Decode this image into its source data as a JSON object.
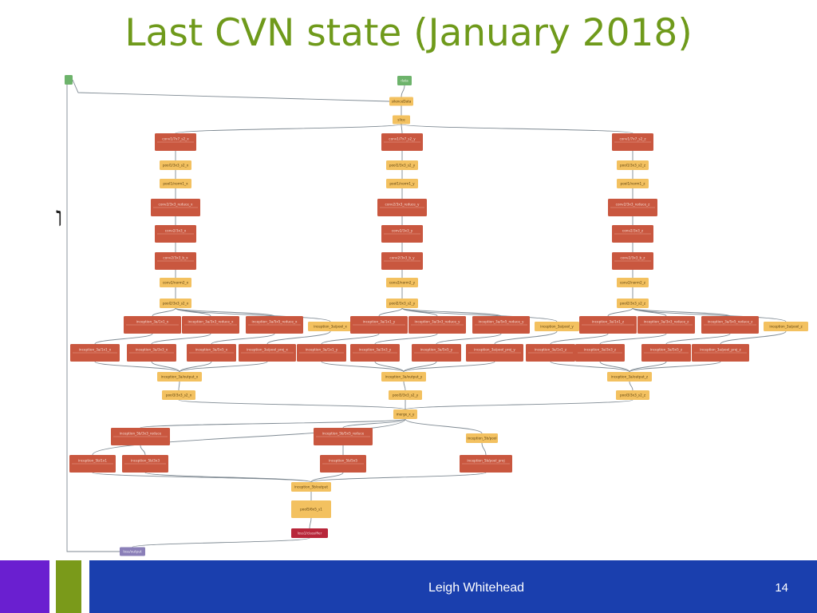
{
  "slide": {
    "title": "Last CVN state (January 2018)",
    "stray_glyph": "ו",
    "author": "Leigh Whitehead",
    "page_number": "14"
  },
  "colors": {
    "input": "#6db36b",
    "data": "#f3c160",
    "op": "#c9573f",
    "loss": "#b8263a",
    "label": "#8a7fb8",
    "edge": "#7f8a93",
    "title": "#6f9a1b",
    "footer_purple": "#6a1fd0",
    "footer_green": "#7a9a1a",
    "footer_blue": "#1a3fae"
  },
  "graph": {
    "nodes": [
      {
        "id": "label_in",
        "kind": "input",
        "text": ""
      },
      {
        "id": "data_in",
        "kind": "input",
        "text": "data"
      },
      {
        "id": "silence",
        "kind": "data",
        "text": "silenceData"
      },
      {
        "id": "slice",
        "kind": "data",
        "text": "slice"
      },
      {
        "id": "conv1x",
        "kind": "op",
        "text": "conv1/7x7_s2_x"
      },
      {
        "id": "pool1x",
        "kind": "data",
        "text": "pool1/3x3_s2_x"
      },
      {
        "id": "lrn1x",
        "kind": "data",
        "text": "pool1/norm1_x"
      },
      {
        "id": "c3rx",
        "kind": "op",
        "text": "conv2/3x3_reduce_x"
      },
      {
        "id": "c3x",
        "kind": "op",
        "text": "conv2/3x3_x"
      },
      {
        "id": "c3bx",
        "kind": "op",
        "text": "conv2/3x3_b_x"
      },
      {
        "id": "lrn2x",
        "kind": "data",
        "text": "conv2/norm2_x"
      },
      {
        "id": "pool2x",
        "kind": "data",
        "text": "pool2/3x3_s2_x"
      },
      {
        "id": "i1x",
        "kind": "op",
        "text": "inception_3a/1x1_x"
      },
      {
        "id": "i2x",
        "kind": "op",
        "text": "inception_3a/3x3_reduce_x"
      },
      {
        "id": "i3x",
        "kind": "op",
        "text": "inception_3a/5x5_reduce_x"
      },
      {
        "id": "i4x",
        "kind": "data",
        "text": "inception_3a/pool_x"
      },
      {
        "id": "j1x",
        "kind": "op",
        "text": "inception_3a/1x1_x"
      },
      {
        "id": "j2x",
        "kind": "op",
        "text": "inception_3a/3x3_x"
      },
      {
        "id": "j3x",
        "kind": "op",
        "text": "inception_3a/5x5_x"
      },
      {
        "id": "j4x",
        "kind": "op",
        "text": "inception_3a/pool_proj_x"
      },
      {
        "id": "catx",
        "kind": "data",
        "text": "inception_3a/output_x"
      },
      {
        "id": "pool3x",
        "kind": "data",
        "text": "pool3/3x3_s2_x"
      },
      {
        "id": "conv1y",
        "kind": "op",
        "text": "conv1/7x7_s2_y"
      },
      {
        "id": "pool1y",
        "kind": "data",
        "text": "pool1/3x3_s2_y"
      },
      {
        "id": "lrn1y",
        "kind": "data",
        "text": "pool1/norm1_y"
      },
      {
        "id": "c3ry",
        "kind": "op",
        "text": "conv2/3x3_reduce_y"
      },
      {
        "id": "c3y",
        "kind": "op",
        "text": "conv2/3x3_y"
      },
      {
        "id": "c3by",
        "kind": "op",
        "text": "conv2/3x3_b_y"
      },
      {
        "id": "lrn2y",
        "kind": "data",
        "text": "conv2/norm2_y"
      },
      {
        "id": "pool2y",
        "kind": "data",
        "text": "pool2/3x3_s2_y"
      },
      {
        "id": "i1y",
        "kind": "op",
        "text": "inception_3a/1x1_y"
      },
      {
        "id": "i2y",
        "kind": "op",
        "text": "inception_3a/3x3_reduce_y"
      },
      {
        "id": "i3y",
        "kind": "op",
        "text": "inception_3a/5x5_reduce_y"
      },
      {
        "id": "i4y",
        "kind": "data",
        "text": "inception_3a/pool_y"
      },
      {
        "id": "j1y",
        "kind": "op",
        "text": "inception_3a/1x1_y"
      },
      {
        "id": "j2y",
        "kind": "op",
        "text": "inception_3a/3x3_y"
      },
      {
        "id": "j3y",
        "kind": "op",
        "text": "inception_3a/5x5_y"
      },
      {
        "id": "j4y",
        "kind": "op",
        "text": "inception_3a/pool_proj_y"
      },
      {
        "id": "caty",
        "kind": "data",
        "text": "inception_3a/output_y"
      },
      {
        "id": "pool3y",
        "kind": "data",
        "text": "pool3/3x3_s2_y"
      },
      {
        "id": "conv1z",
        "kind": "op",
        "text": "conv1/7x7_s2_z"
      },
      {
        "id": "pool1z",
        "kind": "data",
        "text": "pool1/3x3_s2_z"
      },
      {
        "id": "lrn1z",
        "kind": "data",
        "text": "pool1/norm1_z"
      },
      {
        "id": "c3rz",
        "kind": "op",
        "text": "conv2/3x3_reduce_z"
      },
      {
        "id": "c3z",
        "kind": "op",
        "text": "conv2/3x3_z"
      },
      {
        "id": "c3bz",
        "kind": "op",
        "text": "conv2/3x3_b_z"
      },
      {
        "id": "lrn2z",
        "kind": "data",
        "text": "conv2/norm2_z"
      },
      {
        "id": "pool2z",
        "kind": "data",
        "text": "pool2/3x3_s2_z"
      },
      {
        "id": "i1z",
        "kind": "op",
        "text": "inception_3a/1x1_z"
      },
      {
        "id": "i2z",
        "kind": "op",
        "text": "inception_3a/3x3_reduce_z"
      },
      {
        "id": "i3z",
        "kind": "op",
        "text": "inception_3a/5x5_reduce_z"
      },
      {
        "id": "i4z",
        "kind": "data",
        "text": "inception_3a/pool_z"
      },
      {
        "id": "j1z",
        "kind": "op",
        "text": "inception_3a/1x1_z"
      },
      {
        "id": "j2z",
        "kind": "op",
        "text": "inception_3a/3x3_z"
      },
      {
        "id": "j3z",
        "kind": "op",
        "text": "inception_3a/5x5_z"
      },
      {
        "id": "j4z",
        "kind": "op",
        "text": "inception_3a/pool_proj_z"
      },
      {
        "id": "catz",
        "kind": "data",
        "text": "inception_3a/output_z"
      },
      {
        "id": "pool3z",
        "kind": "data",
        "text": "pool3/3x3_s2_z"
      },
      {
        "id": "merge",
        "kind": "data",
        "text": "merge_x_y"
      },
      {
        "id": "m1",
        "kind": "op",
        "text": "inception_5b/3x3_reduce"
      },
      {
        "id": "m2",
        "kind": "op",
        "text": "inception_5b/5x5_reduce"
      },
      {
        "id": "m3",
        "kind": "data",
        "text": "inception_5b/pool"
      },
      {
        "id": "n1",
        "kind": "op",
        "text": "inception_5b/1x1"
      },
      {
        "id": "n2",
        "kind": "op",
        "text": "inception_5b/3x3"
      },
      {
        "id": "n3",
        "kind": "op",
        "text": "inception_5b/5x5"
      },
      {
        "id": "n4",
        "kind": "op",
        "text": "inception_5b/pool_proj"
      },
      {
        "id": "out",
        "kind": "data",
        "text": "inception_5b/output"
      },
      {
        "id": "pool5",
        "kind": "data",
        "text": "pool5/6x5_s1"
      },
      {
        "id": "loss",
        "kind": "loss",
        "text": "loss1/classifier"
      },
      {
        "id": "lossout",
        "kind": "label",
        "text": "loss/output"
      }
    ],
    "edges": [
      [
        "label_in",
        "silence"
      ],
      [
        "data_in",
        "silence"
      ],
      [
        "silence",
        "slice"
      ],
      [
        "label_in",
        "lossout"
      ],
      [
        "slice",
        "conv1x"
      ],
      [
        "slice",
        "conv1y"
      ],
      [
        "slice",
        "conv1z"
      ],
      [
        "conv1x",
        "pool1x"
      ],
      [
        "pool1x",
        "lrn1x"
      ],
      [
        "lrn1x",
        "c3rx"
      ],
      [
        "c3rx",
        "c3x"
      ],
      [
        "c3x",
        "c3bx"
      ],
      [
        "c3bx",
        "lrn2x"
      ],
      [
        "lrn2x",
        "pool2x"
      ],
      [
        "pool2x",
        "i1x"
      ],
      [
        "pool2x",
        "i2x"
      ],
      [
        "pool2x",
        "i3x"
      ],
      [
        "pool2x",
        "i4x"
      ],
      [
        "i1x",
        "j1x"
      ],
      [
        "i2x",
        "j2x"
      ],
      [
        "i3x",
        "j3x"
      ],
      [
        "i4x",
        "j4x"
      ],
      [
        "j1x",
        "catx"
      ],
      [
        "j2x",
        "catx"
      ],
      [
        "j3x",
        "catx"
      ],
      [
        "j4x",
        "catx"
      ],
      [
        "catx",
        "pool3x"
      ],
      [
        "conv1y",
        "pool1y"
      ],
      [
        "pool1y",
        "lrn1y"
      ],
      [
        "lrn1y",
        "c3ry"
      ],
      [
        "c3ry",
        "c3y"
      ],
      [
        "c3y",
        "c3by"
      ],
      [
        "c3by",
        "lrn2y"
      ],
      [
        "lrn2y",
        "pool2y"
      ],
      [
        "pool2y",
        "i1y"
      ],
      [
        "pool2y",
        "i2y"
      ],
      [
        "pool2y",
        "i3y"
      ],
      [
        "pool2y",
        "i4y"
      ],
      [
        "i1y",
        "j1y"
      ],
      [
        "i2y",
        "j2y"
      ],
      [
        "i3y",
        "j3y"
      ],
      [
        "i4y",
        "j4y"
      ],
      [
        "j1y",
        "caty"
      ],
      [
        "j2y",
        "caty"
      ],
      [
        "j3y",
        "caty"
      ],
      [
        "j4y",
        "caty"
      ],
      [
        "caty",
        "pool3y"
      ],
      [
        "conv1z",
        "pool1z"
      ],
      [
        "pool1z",
        "lrn1z"
      ],
      [
        "lrn1z",
        "c3rz"
      ],
      [
        "c3rz",
        "c3z"
      ],
      [
        "c3z",
        "c3bz"
      ],
      [
        "c3bz",
        "lrn2z"
      ],
      [
        "lrn2z",
        "pool2z"
      ],
      [
        "pool2z",
        "i1z"
      ],
      [
        "pool2z",
        "i2z"
      ],
      [
        "pool2z",
        "i3z"
      ],
      [
        "pool2z",
        "i4z"
      ],
      [
        "i1z",
        "j1z"
      ],
      [
        "i2z",
        "j2z"
      ],
      [
        "i3z",
        "j3z"
      ],
      [
        "i4z",
        "j4z"
      ],
      [
        "j1z",
        "catz"
      ],
      [
        "j2z",
        "catz"
      ],
      [
        "j3z",
        "catz"
      ],
      [
        "j4z",
        "catz"
      ],
      [
        "catz",
        "pool3z"
      ],
      [
        "pool3x",
        "merge"
      ],
      [
        "pool3y",
        "merge"
      ],
      [
        "pool3z",
        "merge"
      ],
      [
        "merge",
        "m1"
      ],
      [
        "merge",
        "m2"
      ],
      [
        "merge",
        "m3"
      ],
      [
        "merge",
        "n1"
      ],
      [
        "m1",
        "n2"
      ],
      [
        "m2",
        "n3"
      ],
      [
        "m3",
        "n4"
      ],
      [
        "n1",
        "out"
      ],
      [
        "n2",
        "out"
      ],
      [
        "n3",
        "out"
      ],
      [
        "n4",
        "out"
      ],
      [
        "out",
        "pool5"
      ],
      [
        "pool5",
        "loss"
      ],
      [
        "loss",
        "lossout"
      ]
    ]
  }
}
